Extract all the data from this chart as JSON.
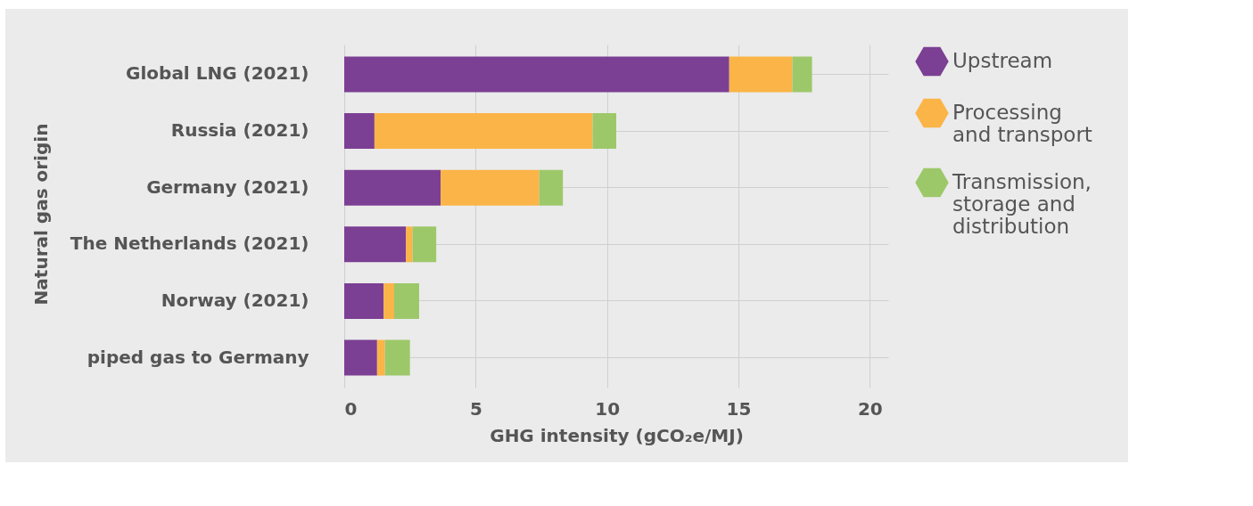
{
  "chart_data": {
    "type": "bar",
    "orientation": "horizontal",
    "stacked": true,
    "xlabel": "GHG intensity (gCO₂e/MJ)",
    "ylabel": "Natural gas origin",
    "categories": [
      "Global LNG (2021)",
      "Russia (2021)",
      "Germany (2021)",
      "The Netherlands (2021)",
      "Norway (2021)",
      "piped gas to Germany"
    ],
    "series": [
      {
        "name": "Upstream",
        "color": "#7b3f93",
        "values": [
          14.65,
          1.15,
          3.67,
          2.35,
          1.5,
          1.25
        ]
      },
      {
        "name": "Processing and transport",
        "color": "#fbb447",
        "values": [
          2.4,
          8.3,
          3.75,
          0.25,
          0.4,
          0.3
        ]
      },
      {
        "name": "Transmission, storage and distribution",
        "color": "#9dc86a",
        "values": [
          0.75,
          0.9,
          0.9,
          0.9,
          0.95,
          0.95
        ]
      }
    ],
    "xlim": [
      0,
      20.7
    ],
    "xticks": [
      0,
      5,
      10,
      15,
      20
    ],
    "grid": true,
    "legend": "right"
  }
}
